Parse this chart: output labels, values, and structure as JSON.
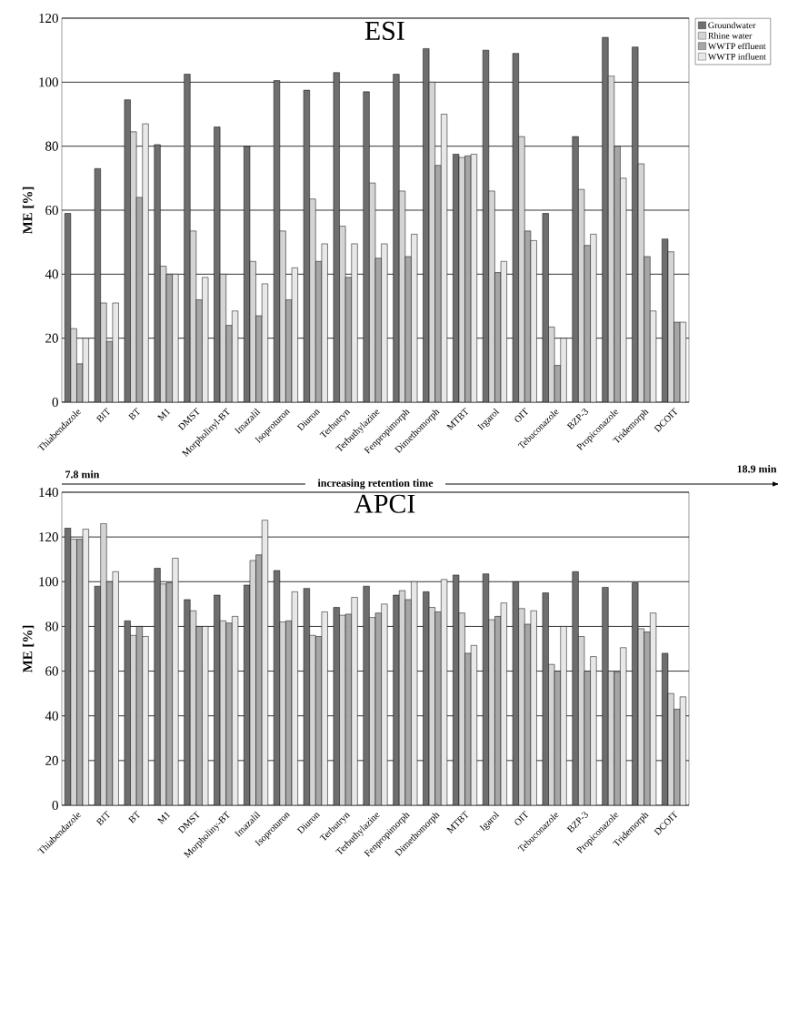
{
  "chart_data": [
    {
      "type": "bar",
      "title": "ESI",
      "ylabel": "ME [%]",
      "categories": [
        "Thiabendazole",
        "BIT",
        "BT",
        "M1",
        "DMST",
        "Morpholinyl-BT",
        "Imazalil",
        "Isoproturon",
        "Diuron",
        "Terbutryn",
        "Terbuthylazine",
        "Fenpropimorph",
        "Dimethomorph",
        "MTBT",
        "Irgarol",
        "OIT",
        "Tebuconazole",
        "BZP-3",
        "Propiconazole",
        "Tridemorph",
        "DCOIT"
      ],
      "series": [
        {
          "name": "Groundwater",
          "color": "#6e6e6e",
          "values": [
            59,
            73,
            94.5,
            80.5,
            102.5,
            86,
            80,
            100.5,
            97.5,
            103,
            97,
            102.5,
            110.5,
            77.5,
            110,
            109,
            59,
            83,
            114,
            111,
            51
          ]
        },
        {
          "name": "Rhine water",
          "color": "#d4d4d4",
          "values": [
            23,
            31,
            84.5,
            42.5,
            53.5,
            40,
            44,
            53.5,
            63.5,
            55,
            68.5,
            66,
            100,
            76.5,
            66,
            83,
            23.5,
            66.5,
            102,
            74.5,
            47
          ]
        },
        {
          "name": "WWTP effluent",
          "color": "#a6a6a6",
          "values": [
            12,
            19,
            64,
            40,
            32,
            24,
            27,
            32,
            44,
            39,
            45,
            45.5,
            74,
            77,
            40.5,
            53.5,
            11.5,
            49,
            80,
            45.5,
            25
          ]
        },
        {
          "name": "WWTP influent",
          "color": "#e8e8e8",
          "values": [
            20,
            31,
            87,
            40,
            39,
            28.5,
            37,
            42,
            49.5,
            49.5,
            49.5,
            52.5,
            90,
            77.5,
            44,
            50.5,
            20,
            52.5,
            70,
            28.5,
            25
          ]
        }
      ],
      "ylim": [
        0,
        120
      ],
      "yticks": [
        0,
        20,
        40,
        60,
        80,
        100,
        120
      ],
      "grid": "y",
      "legend": "top right"
    },
    {
      "type": "bar",
      "title": "APCI",
      "ylabel": "ME [%]",
      "categories": [
        "Thiabendazole",
        "BIT",
        "BT",
        "M1",
        "DMST",
        "Morpholiny-BT",
        "Imazalil",
        "Isoproturon",
        "Diuron",
        "Terbutryn",
        "Terbuthylazine",
        "Fenpropimorph",
        "Dimethomorph",
        "MTBT",
        "Igarol",
        "OIT",
        "Tebuconazole",
        "BZP-3",
        "Propiconazole",
        "Tridemorph",
        "DCOIT"
      ],
      "series": [
        {
          "color": "#6e6e6e",
          "values": [
            124,
            98,
            82.5,
            106,
            92,
            94,
            98.5,
            105,
            97,
            88.5,
            98,
            94,
            95.5,
            103,
            103.5,
            100,
            95,
            104.5,
            97.5,
            99.5,
            68
          ]
        },
        {
          "color": "#d4d4d4",
          "values": [
            119,
            126,
            76,
            99,
            87,
            82.5,
            109.5,
            82,
            76,
            85,
            84,
            96,
            88.5,
            86,
            83,
            88,
            63,
            75.5,
            60,
            79,
            50
          ]
        },
        {
          "color": "#a6a6a6",
          "values": [
            119,
            100,
            80,
            99.5,
            80,
            81.5,
            112,
            82.5,
            75.5,
            85.5,
            86,
            92,
            86.5,
            68,
            84.5,
            81,
            60,
            60,
            59.5,
            77.5,
            43
          ]
        },
        {
          "color": "#e8e8e8",
          "values": [
            123.5,
            104.5,
            75.5,
            110.5,
            80,
            84.5,
            127.5,
            95.5,
            86.5,
            93,
            90,
            100,
            101,
            71.5,
            90.5,
            87,
            80,
            66.5,
            70.5,
            86,
            48.5
          ]
        }
      ],
      "ylim": [
        0,
        140
      ],
      "yticks": [
        0,
        20,
        40,
        60,
        80,
        100,
        120,
        140
      ],
      "grid": "y",
      "annotations": [
        "7.8 min",
        "increasing retention time",
        "18.9 min"
      ]
    }
  ]
}
